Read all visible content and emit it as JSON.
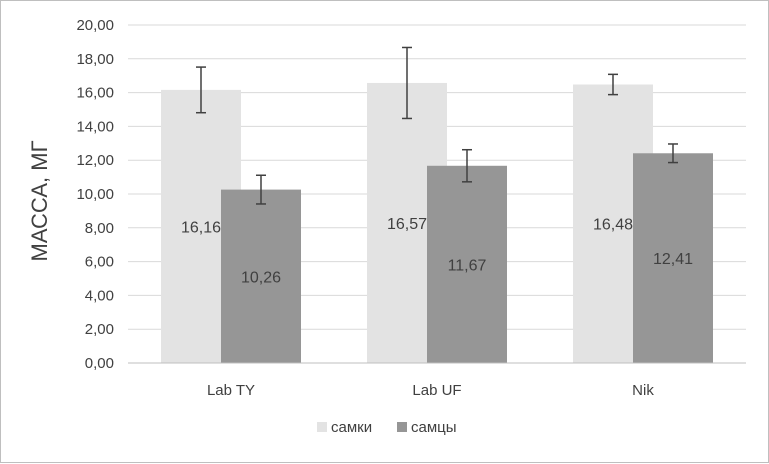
{
  "chart_data": {
    "type": "bar",
    "title": "",
    "xlabel": "",
    "ylabel": "МАССА, МГ",
    "ylim": [
      0,
      20
    ],
    "y_tick_step": 2,
    "y_tick_labels": [
      "0,00",
      "2,00",
      "4,00",
      "6,00",
      "8,00",
      "10,00",
      "12,00",
      "14,00",
      "16,00",
      "18,00",
      "20,00"
    ],
    "categories": [
      "Lab TY",
      "Lab UF",
      "Nik"
    ],
    "grid": true,
    "legend_position": "bottom",
    "series": [
      {
        "name": "самки",
        "color": "#e3e3e3",
        "values": [
          16.16,
          16.57,
          16.48
        ],
        "labels": [
          "16,16",
          "16,57",
          "16,48"
        ],
        "error": [
          1.35,
          2.1,
          0.6
        ]
      },
      {
        "name": "самцы",
        "color": "#969696",
        "values": [
          10.26,
          11.67,
          12.41
        ],
        "labels": [
          "10,26",
          "11,67",
          "12,41"
        ],
        "error": [
          0.85,
          0.95,
          0.55
        ]
      }
    ]
  }
}
